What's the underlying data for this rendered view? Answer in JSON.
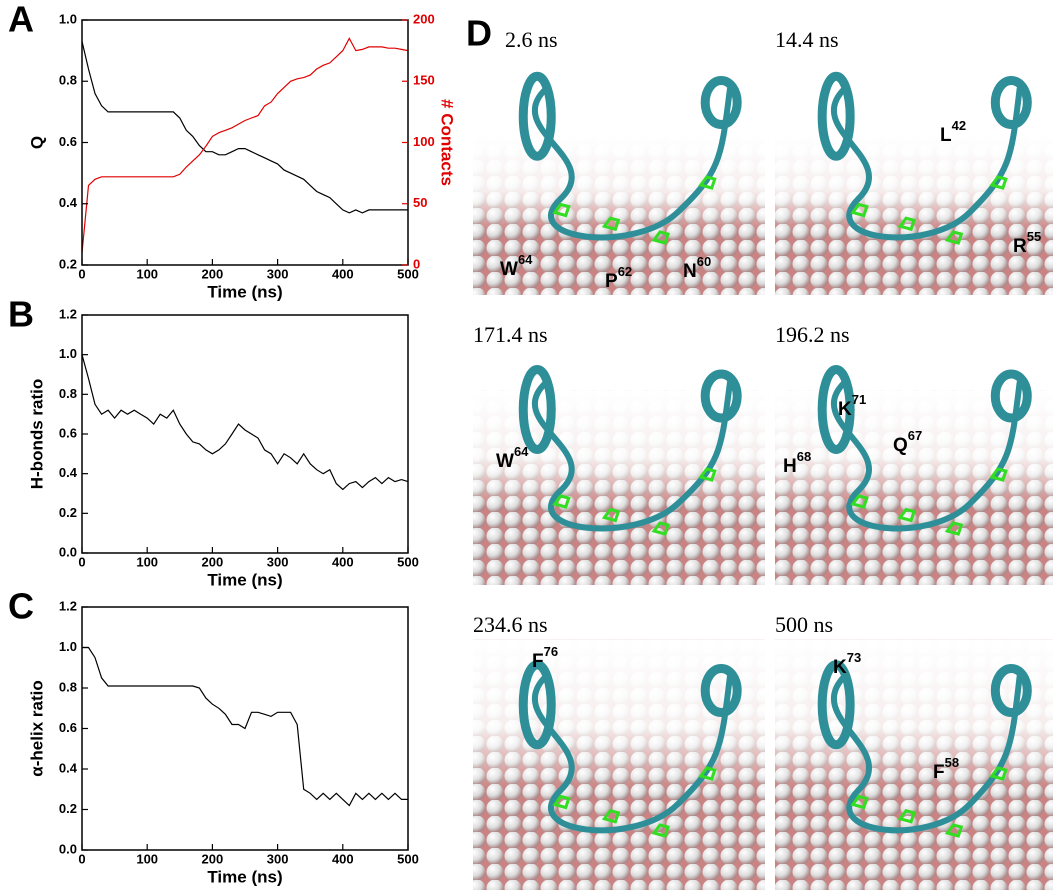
{
  "chart_data": [
    {
      "type": "line",
      "panel_label": "A",
      "xlabel": "Time (ns)",
      "ylabel": "Q",
      "y2label": "# Contacts",
      "xlim": [
        0,
        500
      ],
      "xticks": [
        0,
        100,
        200,
        300,
        400,
        500
      ],
      "ylim": [
        0.2,
        1
      ],
      "yticks": [
        0.2,
        0.4,
        0.6,
        0.8,
        {
          "value": 1,
          "label": "1.0"
        }
      ],
      "y2lim": [
        0,
        200
      ],
      "y2ticks": [
        0,
        50,
        100,
        150,
        200
      ],
      "y2color": "#e00000",
      "x": [
        0,
        10,
        20,
        30,
        40,
        50,
        60,
        70,
        80,
        90,
        100,
        110,
        120,
        130,
        140,
        150,
        160,
        170,
        180,
        190,
        200,
        210,
        220,
        230,
        240,
        250,
        260,
        270,
        280,
        290,
        300,
        310,
        320,
        330,
        340,
        350,
        360,
        370,
        380,
        390,
        400,
        410,
        420,
        430,
        440,
        450,
        460,
        470,
        480,
        490,
        500
      ],
      "series": [
        {
          "color": "#000000",
          "values": [
            0.93,
            0.84,
            0.76,
            0.72,
            0.7,
            0.7,
            0.7,
            0.7,
            0.7,
            0.7,
            0.7,
            0.7,
            0.7,
            0.7,
            0.7,
            0.68,
            0.64,
            0.62,
            0.59,
            0.57,
            0.57,
            0.56,
            0.56,
            0.57,
            0.58,
            0.58,
            0.57,
            0.56,
            0.55,
            0.54,
            0.53,
            0.51,
            0.5,
            0.49,
            0.48,
            0.46,
            0.44,
            0.43,
            0.42,
            0.4,
            0.38,
            0.37,
            0.38,
            0.37,
            0.38,
            0.38,
            0.38,
            0.38,
            0.38,
            0.38,
            0.38
          ]
        },
        {
          "color": "#e00000",
          "axis": "y2",
          "values": [
            10,
            65,
            70,
            72,
            72,
            72,
            72,
            72,
            72,
            72,
            72,
            72,
            72,
            72,
            72,
            74,
            80,
            85,
            90,
            97,
            105,
            108,
            110,
            112,
            115,
            118,
            120,
            122,
            130,
            133,
            140,
            145,
            150,
            152,
            153,
            155,
            160,
            163,
            165,
            170,
            175,
            185,
            175,
            176,
            178,
            178,
            178,
            177,
            177,
            176,
            175
          ]
        }
      ]
    },
    {
      "type": "line",
      "panel_label": "B",
      "xlabel": "Time (ns)",
      "ylabel": "H-bonds ratio",
      "xlim": [
        0,
        500
      ],
      "xticks": [
        0,
        100,
        200,
        300,
        400,
        500
      ],
      "ylim": [
        0,
        1.2
      ],
      "yticks": [
        {
          "value": 0,
          "label": "0.0"
        },
        0.2,
        0.4,
        0.6,
        0.8,
        {
          "value": 1,
          "label": "1.0"
        },
        1.2
      ],
      "x": [
        0,
        10,
        20,
        30,
        40,
        50,
        60,
        70,
        80,
        90,
        100,
        110,
        120,
        130,
        140,
        150,
        160,
        170,
        180,
        190,
        200,
        210,
        220,
        230,
        240,
        250,
        260,
        270,
        280,
        290,
        300,
        310,
        320,
        330,
        340,
        350,
        360,
        370,
        380,
        390,
        400,
        410,
        420,
        430,
        440,
        450,
        460,
        470,
        480,
        490,
        500
      ],
      "series": [
        {
          "color": "#000000",
          "values": [
            1,
            0.88,
            0.75,
            0.7,
            0.72,
            0.68,
            0.72,
            0.7,
            0.72,
            0.7,
            0.68,
            0.65,
            0.7,
            0.68,
            0.72,
            0.65,
            0.6,
            0.56,
            0.55,
            0.52,
            0.5,
            0.52,
            0.55,
            0.6,
            0.65,
            0.62,
            0.6,
            0.58,
            0.52,
            0.5,
            0.45,
            0.5,
            0.48,
            0.45,
            0.5,
            0.45,
            0.42,
            0.4,
            0.42,
            0.35,
            0.32,
            0.35,
            0.36,
            0.33,
            0.36,
            0.38,
            0.35,
            0.38,
            0.36,
            0.37,
            0.36
          ]
        }
      ]
    },
    {
      "type": "line",
      "panel_label": "C",
      "xlabel": "Time (ns)",
      "ylabel": "α-helix ratio",
      "xlim": [
        0,
        500
      ],
      "xticks": [
        0,
        100,
        200,
        300,
        400,
        500
      ],
      "ylim": [
        0,
        1.2
      ],
      "yticks": [
        {
          "value": 0,
          "label": "0.0"
        },
        0.2,
        0.4,
        0.6,
        0.8,
        {
          "value": 1,
          "label": "1.0"
        },
        1.2
      ],
      "x": [
        0,
        10,
        20,
        30,
        40,
        50,
        60,
        70,
        80,
        90,
        100,
        110,
        120,
        130,
        140,
        150,
        160,
        170,
        180,
        190,
        200,
        210,
        220,
        230,
        240,
        250,
        260,
        270,
        280,
        290,
        300,
        310,
        320,
        330,
        340,
        350,
        360,
        370,
        380,
        390,
        400,
        410,
        420,
        430,
        440,
        450,
        460,
        470,
        480,
        490,
        500
      ],
      "series": [
        {
          "color": "#000000",
          "values": [
            1,
            1,
            0.95,
            0.85,
            0.81,
            0.81,
            0.81,
            0.81,
            0.81,
            0.81,
            0.81,
            0.81,
            0.81,
            0.81,
            0.81,
            0.81,
            0.81,
            0.81,
            0.8,
            0.75,
            0.72,
            0.7,
            0.67,
            0.62,
            0.62,
            0.6,
            0.68,
            0.68,
            0.67,
            0.66,
            0.68,
            0.68,
            0.68,
            0.62,
            0.3,
            0.28,
            0.25,
            0.28,
            0.25,
            0.28,
            0.25,
            0.22,
            0.28,
            0.25,
            0.28,
            0.25,
            0.28,
            0.25,
            0.28,
            0.25,
            0.25
          ]
        }
      ]
    }
  ],
  "snapshots_panel": {
    "label": "D",
    "items": [
      {
        "time": "2.6 ns",
        "residues": [
          {
            "name": "W",
            "number": "64"
          },
          {
            "name": "P",
            "number": "62"
          },
          {
            "name": "N",
            "number": "60"
          }
        ]
      },
      {
        "time": "14.4 ns",
        "residues": [
          {
            "name": "L",
            "number": "42"
          },
          {
            "name": "R",
            "number": "55"
          }
        ]
      },
      {
        "time": "171.4 ns",
        "residues": [
          {
            "name": "W",
            "number": "64"
          }
        ]
      },
      {
        "time": "196.2 ns",
        "residues": [
          {
            "name": "K",
            "number": "71"
          },
          {
            "name": "H",
            "number": "68"
          },
          {
            "name": "Q",
            "number": "67"
          }
        ]
      },
      {
        "time": "234.6 ns",
        "residues": [
          {
            "name": "F",
            "number": "76"
          }
        ]
      },
      {
        "time": "500 ns",
        "residues": [
          {
            "name": "K",
            "number": "73"
          },
          {
            "name": "F",
            "number": "58"
          }
        ]
      }
    ]
  }
}
